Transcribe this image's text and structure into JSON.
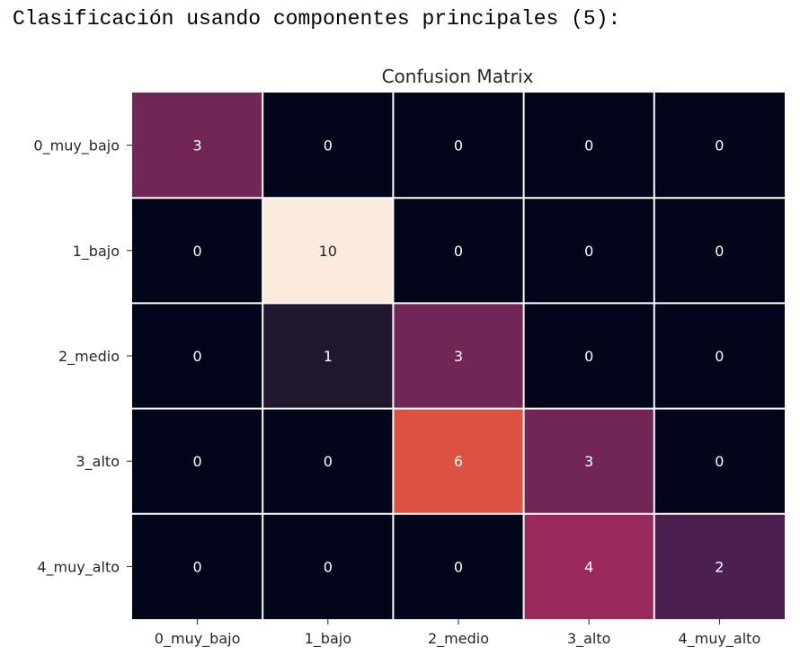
{
  "header": {
    "text": "Clasificación usando componentes principales (5):"
  },
  "chart_data": {
    "type": "heatmap",
    "title": "Confusion Matrix",
    "xlabel": "",
    "ylabel": "",
    "x_categories": [
      "0_muy_bajo",
      "1_bajo",
      "2_medio",
      "3_alto",
      "4_muy_alto"
    ],
    "y_categories": [
      "0_muy_bajo",
      "1_bajo",
      "2_medio",
      "3_alto",
      "4_muy_alto"
    ],
    "values": [
      [
        3,
        0,
        0,
        0,
        0
      ],
      [
        0,
        10,
        0,
        0,
        0
      ],
      [
        0,
        1,
        3,
        0,
        0
      ],
      [
        0,
        0,
        6,
        3,
        0
      ],
      [
        0,
        0,
        0,
        4,
        2
      ]
    ],
    "value_range": [
      0,
      10
    ],
    "colormap": "rocket",
    "annotations": true,
    "colorbar": false,
    "cell_border_color": "#ffffff"
  }
}
